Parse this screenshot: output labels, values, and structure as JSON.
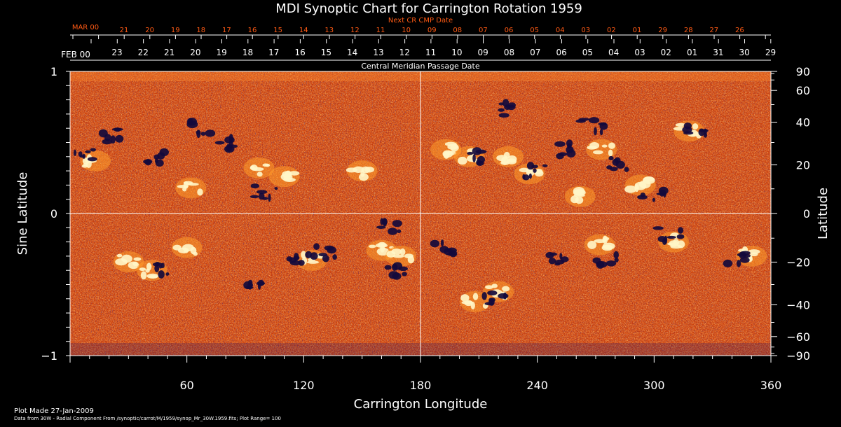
{
  "title": "MDI Synoptic Chart for Carrington Rotation 1959",
  "next_cmp": {
    "label": "Next CR CMP Date",
    "month": "MAR 00",
    "days": [
      "21",
      "20",
      "19",
      "18",
      "17",
      "16",
      "15",
      "14",
      "13",
      "12",
      "11",
      "10",
      "09",
      "08",
      "07",
      "06",
      "05",
      "04",
      "03",
      "02",
      "01",
      "29",
      "28",
      "27",
      "26"
    ]
  },
  "cmp": {
    "label": "Central Meridian Passage Date",
    "month": "FEB 00",
    "days": [
      "23",
      "22",
      "21",
      "20",
      "19",
      "18",
      "17",
      "16",
      "15",
      "14",
      "13",
      "12",
      "11",
      "10",
      "09",
      "08",
      "07",
      "06",
      "05",
      "04",
      "03",
      "02",
      "01",
      "31",
      "30",
      "29"
    ]
  },
  "chart_data": {
    "type": "heatmap",
    "title": "MDI Synoptic Chart for Carrington Rotation 1959",
    "xlabel": "Carrington Longitude",
    "ylabel_left": "Sine Latitude",
    "ylabel_right": "Latitude",
    "xlim": [
      0,
      360
    ],
    "ylim": [
      -1,
      1
    ],
    "x_ticks": [
      60,
      120,
      180,
      240,
      300,
      360
    ],
    "y_ticks_left": [
      1,
      0,
      -1
    ],
    "y_ticks_left_labels": [
      "1",
      "0",
      "−1"
    ],
    "y_ticks_right": [
      90,
      60,
      40,
      20,
      0,
      -20,
      -40,
      -60,
      -90
    ],
    "y_ticks_right_labels": [
      "90",
      "60",
      "40",
      "20",
      "0",
      "−20",
      "−40",
      "−60",
      "−90"
    ],
    "reference_lines": {
      "longitude": 180,
      "sine_latitude": 0
    },
    "plot_range": 100,
    "colors": {
      "background_field": "#d94a12",
      "positive": "#fff6c8",
      "negative": "#140a3c",
      "highlight": "#ff9a2a"
    },
    "positive_regions": [
      {
        "lon": 13,
        "sinlat": 0.37
      },
      {
        "lon": 30,
        "sinlat": -0.34
      },
      {
        "lon": 42,
        "sinlat": -0.4
      },
      {
        "lon": 60,
        "sinlat": -0.24
      },
      {
        "lon": 62,
        "sinlat": 0.18
      },
      {
        "lon": 97,
        "sinlat": 0.32
      },
      {
        "lon": 110,
        "sinlat": 0.26
      },
      {
        "lon": 124,
        "sinlat": -0.33
      },
      {
        "lon": 150,
        "sinlat": 0.3
      },
      {
        "lon": 160,
        "sinlat": -0.26
      },
      {
        "lon": 170,
        "sinlat": -0.3
      },
      {
        "lon": 193,
        "sinlat": 0.45
      },
      {
        "lon": 205,
        "sinlat": 0.4
      },
      {
        "lon": 208,
        "sinlat": -0.62
      },
      {
        "lon": 220,
        "sinlat": -0.55
      },
      {
        "lon": 225,
        "sinlat": 0.4
      },
      {
        "lon": 236,
        "sinlat": 0.28
      },
      {
        "lon": 262,
        "sinlat": 0.12
      },
      {
        "lon": 273,
        "sinlat": 0.45
      },
      {
        "lon": 293,
        "sinlat": 0.2
      },
      {
        "lon": 272,
        "sinlat": -0.22
      },
      {
        "lon": 310,
        "sinlat": -0.2
      },
      {
        "lon": 318,
        "sinlat": 0.58
      },
      {
        "lon": 350,
        "sinlat": -0.3
      }
    ],
    "negative_regions": [
      {
        "lon": 8,
        "sinlat": 0.4
      },
      {
        "lon": 20,
        "sinlat": 0.55
      },
      {
        "lon": 45,
        "sinlat": 0.4
      },
      {
        "lon": 50,
        "sinlat": -0.38
      },
      {
        "lon": 66,
        "sinlat": 0.6
      },
      {
        "lon": 78,
        "sinlat": 0.5
      },
      {
        "lon": 95,
        "sinlat": -0.48
      },
      {
        "lon": 100,
        "sinlat": 0.15
      },
      {
        "lon": 117,
        "sinlat": -0.32
      },
      {
        "lon": 130,
        "sinlat": -0.28
      },
      {
        "lon": 164,
        "sinlat": -0.1
      },
      {
        "lon": 168,
        "sinlat": -0.4
      },
      {
        "lon": 193,
        "sinlat": -0.25
      },
      {
        "lon": 210,
        "sinlat": 0.4
      },
      {
        "lon": 218,
        "sinlat": -0.6
      },
      {
        "lon": 222,
        "sinlat": 0.73
      },
      {
        "lon": 239,
        "sinlat": 0.3
      },
      {
        "lon": 255,
        "sinlat": 0.45
      },
      {
        "lon": 250,
        "sinlat": -0.33
      },
      {
        "lon": 268,
        "sinlat": 0.62
      },
      {
        "lon": 281,
        "sinlat": 0.35
      },
      {
        "lon": 276,
        "sinlat": -0.32
      },
      {
        "lon": 300,
        "sinlat": 0.12
      },
      {
        "lon": 308,
        "sinlat": -0.15
      },
      {
        "lon": 322,
        "sinlat": 0.6
      },
      {
        "lon": 343,
        "sinlat": -0.32
      }
    ]
  },
  "footer": {
    "plot_made": "Plot Made 27-Jan-2009",
    "data_from": "Data from 30W - Radial Component From /synoptic/carrot/M/1959/synop_Mr_30W.1959.fits; Plot Range= 100"
  }
}
